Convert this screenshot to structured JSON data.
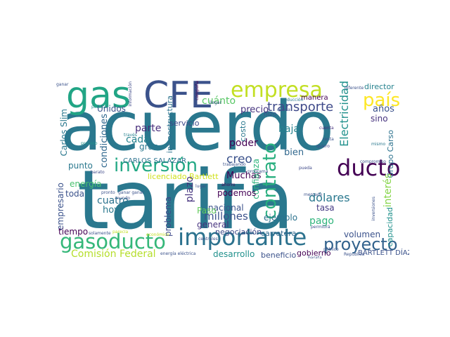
{
  "words": [
    {
      "text": "acuerdo",
      "color": "#2a788e"
    },
    {
      "text": "tarifa",
      "color": "#2a788e"
    },
    {
      "text": "CFE",
      "color": "#3b528b"
    },
    {
      "text": "gas",
      "color": "#21a585"
    },
    {
      "text": "empresa",
      "color": "#c2df23"
    },
    {
      "text": "importante",
      "color": "#2c728e"
    },
    {
      "text": "ducto",
      "color": "#440154"
    },
    {
      "text": "gasoducto",
      "color": "#35b779"
    },
    {
      "text": "proyecto",
      "color": "#33638d"
    },
    {
      "text": "inversión",
      "color": "#22a884"
    },
    {
      "text": "contrato",
      "color": "#29af7f"
    },
    {
      "text": "país",
      "color": "#fde725"
    },
    {
      "text": "transporte",
      "color": "#3e4989"
    },
    {
      "text": "Electricidad",
      "color": "#21918c"
    },
    {
      "text": "cuánto",
      "color": "#58c765"
    },
    {
      "text": "precio",
      "color": "#46337e"
    },
    {
      "text": "años",
      "color": "#3b528b"
    },
    {
      "text": "director",
      "color": "#26828e"
    },
    {
      "text": "manera",
      "color": "#440154"
    },
    {
      "text": "parte",
      "color": "#472d7b"
    },
    {
      "text": "cada",
      "color": "#26828e"
    },
    {
      "text": "gran",
      "color": "#2a788e"
    },
    {
      "text": "condiciones",
      "color": "#31688e"
    },
    {
      "text": "Unidos",
      "color": "#3b528b"
    },
    {
      "text": "Carlos Slim",
      "color": "#2a788e"
    },
    {
      "text": "infraestructura",
      "color": "#2c728e"
    },
    {
      "text": "servicio",
      "color": "#3e4989"
    },
    {
      "text": "poder",
      "color": "#440154"
    },
    {
      "text": "baja",
      "color": "#26828e"
    },
    {
      "text": "bien",
      "color": "#31688e"
    },
    {
      "text": "sino",
      "color": "#46327e"
    },
    {
      "text": "Grupo Carso",
      "color": "#2c728e"
    },
    {
      "text": "CARLOS SALAZAR",
      "color": "#2c728e"
    },
    {
      "text": "licenciado Bartlett",
      "color": "#d0e11c"
    },
    {
      "text": "creo",
      "color": "#3b528b"
    },
    {
      "text": "Muchas",
      "color": "#440154"
    },
    {
      "text": "costo",
      "color": "#2a788e"
    },
    {
      "text": "confianza",
      "color": "#2fb47c"
    },
    {
      "text": "dólares",
      "color": "#2a788e"
    },
    {
      "text": "tasa",
      "color": "#443983"
    },
    {
      "text": "interés",
      "color": "#86d549"
    },
    {
      "text": "punto",
      "color": "#2a788e"
    },
    {
      "text": "empresario",
      "color": "#3b528b"
    },
    {
      "text": "energía",
      "color": "#48c16e"
    },
    {
      "text": "toda",
      "color": "#3b528b"
    },
    {
      "text": "cuatro",
      "color": "#2c728e"
    },
    {
      "text": "hoy",
      "color": "#2a788e"
    },
    {
      "text": "plazo",
      "color": "#46337e"
    },
    {
      "text": "problema",
      "color": "#3e4989"
    },
    {
      "text": "podemos",
      "color": "#440154"
    },
    {
      "text": "nacional",
      "color": "#3b528b"
    },
    {
      "text": "millones",
      "color": "#3b528b"
    },
    {
      "text": "ejemplo",
      "color": "#2c728e"
    },
    {
      "text": "pago",
      "color": "#2fb47c"
    },
    {
      "text": "capacidad",
      "color": "#21918c"
    },
    {
      "text": "volumen",
      "color": "#3b528b"
    },
    {
      "text": "tiempo",
      "color": "#440154"
    },
    {
      "text": "general",
      "color": "#46327e"
    },
    {
      "text": "negociación",
      "color": "#3e4989"
    },
    {
      "text": "carretera",
      "color": "#31688e"
    },
    {
      "text": "Comisión Federal",
      "color": "#b5de2b"
    },
    {
      "text": "desarrollo",
      "color": "#21918c"
    },
    {
      "text": "beneficio",
      "color": "#3b528b"
    },
    {
      "text": "gobierno",
      "color": "#440154"
    },
    {
      "text": "BARTLETT DÍAZ",
      "color": "#3b528b"
    },
    {
      "text": "Paso",
      "color": "#65cb5e"
    },
    {
      "text": "hizo",
      "color": "#3b528b"
    },
    {
      "text": "ganar",
      "color": "#3b528b"
    },
    {
      "text": "información",
      "color": "#3e4989"
    },
    {
      "text": "campaña",
      "color": "#440154"
    },
    {
      "text": "reducción",
      "color": "#2a788e"
    },
    {
      "text": "diferente",
      "color": "#3b528b"
    },
    {
      "text": "política",
      "color": "#21918c"
    },
    {
      "text": "llegar",
      "color": "#3b528b"
    },
    {
      "text": "queda",
      "color": "#3b528b"
    },
    {
      "text": "través",
      "color": "#26828e"
    },
    {
      "text": "proceso",
      "color": "#21918c"
    },
    {
      "text": "cuenta",
      "color": "#46337e"
    },
    {
      "text": "renta",
      "color": "#3b528b"
    },
    {
      "text": "quiero",
      "color": "#3e4989"
    },
    {
      "text": "mismo",
      "color": "#2a788e"
    },
    {
      "text": "compromiso",
      "color": "#3b528b"
    },
    {
      "text": "barato",
      "color": "#3e4989"
    },
    {
      "text": "trabajando",
      "color": "#3b528b"
    },
    {
      "text": "programa",
      "color": "#3b528b"
    },
    {
      "text": "pueda",
      "color": "#3e4989"
    },
    {
      "text": "ahorro",
      "color": "#440154"
    },
    {
      "text": "lugar",
      "color": "#3b528b"
    },
    {
      "text": "pronto",
      "color": "#3b528b"
    },
    {
      "text": "ganar ganar",
      "color": "#3b528b"
    },
    {
      "text": "mundo",
      "color": "#3b528b"
    },
    {
      "text": "solamente",
      "color": "#3b528b"
    },
    {
      "text": "parecía",
      "color": "#c2df23"
    },
    {
      "text": "energía eléctrica",
      "color": "#3b528b"
    },
    {
      "text": "República",
      "color": "#3b528b"
    },
    {
      "text": "mercado",
      "color": "#3b528b"
    },
    {
      "text": "barata",
      "color": "#3b528b"
    },
    {
      "text": "público",
      "color": "#3b528b"
    },
    {
      "text": "centrales",
      "color": "#3b528b"
    },
    {
      "text": "inversiones",
      "color": "#3b528b"
    },
    {
      "text": "permitirá",
      "color": "#3b528b"
    },
    {
      "text": "económico",
      "color": "#c2df23"
    }
  ]
}
